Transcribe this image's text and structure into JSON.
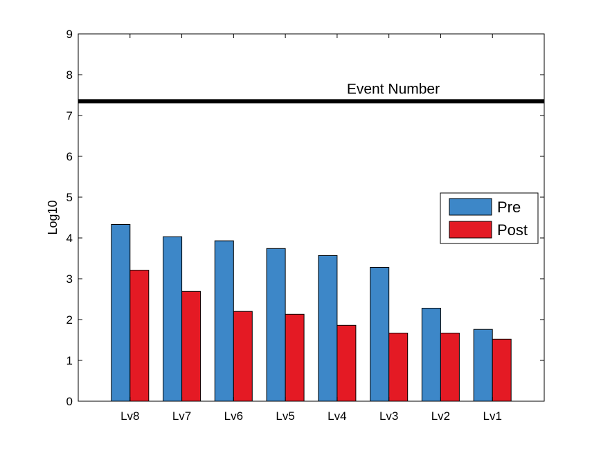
{
  "chart_data": {
    "type": "bar",
    "categories": [
      "Lv8",
      "Lv7",
      "Lv6",
      "Lv5",
      "Lv4",
      "Lv3",
      "Lv2",
      "Lv1"
    ],
    "series": [
      {
        "name": "Pre",
        "color": "#3d87c8",
        "values": [
          4.33,
          4.03,
          3.93,
          3.74,
          3.57,
          3.28,
          2.28,
          1.76
        ]
      },
      {
        "name": "Post",
        "color": "#e41a24",
        "values": [
          3.21,
          2.69,
          2.2,
          2.13,
          1.86,
          1.67,
          1.67,
          1.52
        ]
      }
    ],
    "ylabel": "Log10",
    "xlabel": "",
    "ylim": [
      0,
      9
    ],
    "yticks": [
      0,
      1,
      2,
      3,
      4,
      5,
      6,
      7,
      8,
      9
    ],
    "grid": false,
    "legend_position": "right",
    "reference_line": {
      "label": "Event Number",
      "value": 7.35,
      "color": "#000000"
    }
  }
}
